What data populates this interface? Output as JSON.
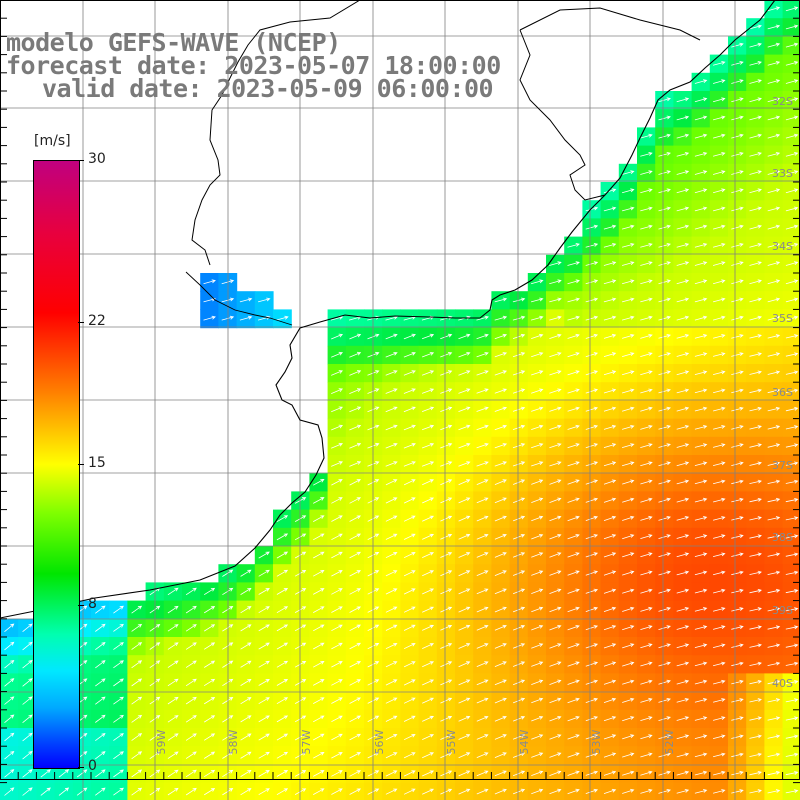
{
  "title": {
    "line1": "modelo GEFS-WAVE (NCEP)",
    "line2": "forecast date: 2023-05-07 18:00:00",
    "line3": "valid date: 2023-05-09 06:00:00"
  },
  "colorbar": {
    "unit": "[m/s]",
    "min": 0,
    "max": 30,
    "ticks": [
      {
        "label": "30",
        "value": 30
      },
      {
        "label": "22",
        "value": 22
      },
      {
        "label": "15",
        "value": 15
      },
      {
        "label": "8",
        "value": 8
      },
      {
        "label": "0",
        "value": 0
      }
    ]
  },
  "map": {
    "lat_labels": [
      "32S",
      "33S",
      "34S",
      "35S",
      "36S",
      "37S",
      "38S",
      "39S",
      "40S"
    ],
    "lon_labels": [
      "59W",
      "58W",
      "57W",
      "56W",
      "55W",
      "54W",
      "53W",
      "52W"
    ]
  },
  "colors": {
    "land": "#ffffff",
    "coastline": "#000000",
    "grid": "#808080",
    "arrows": "#ffffff",
    "title": "#7a7a7a"
  }
}
